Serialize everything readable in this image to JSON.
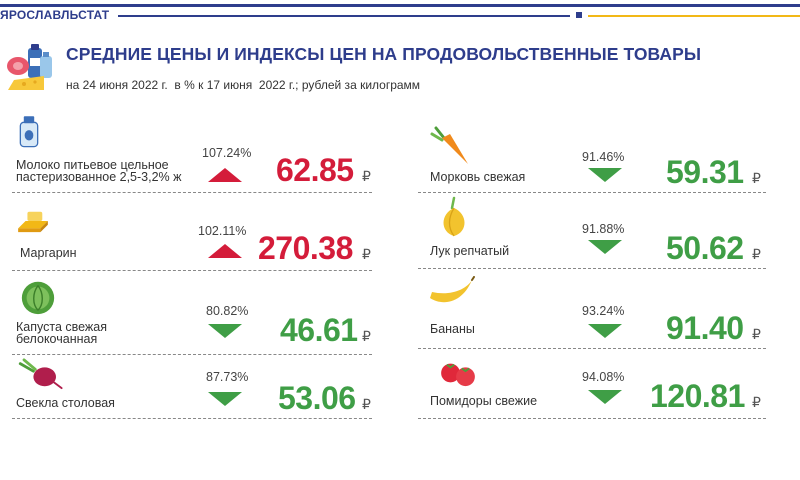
{
  "header": {
    "brand": "ЯРОСЛАВЛЬСТАТ",
    "title": "СРЕДНИЕ ЦЕНЫ И ИНДЕКСЫ ЦЕН НА ПРОДОВОЛЬСТВЕННЫЕ ТОВАРЫ",
    "subtitle": "на 24 июня 2022 г.  в % к 17 июня  2022 г.; рублей за килограмм"
  },
  "currency_symbol": "₽",
  "colors": {
    "up": "#d41c3a",
    "down": "#3f9e46",
    "brand": "#2e3d8c",
    "accent": "#f2b816"
  },
  "items": [
    {
      "name_line1": "Молоко питьевое цельное",
      "name_line2": "пастеризованное 2,5-3,2% ж",
      "index": "107.24%",
      "direction": "up",
      "price": "62.85",
      "icon": "milk-bottle-icon"
    },
    {
      "name_line1": "Маргарин",
      "name_line2": "",
      "index": "102.11%",
      "direction": "up",
      "price": "270.38",
      "icon": "margarine-icon"
    },
    {
      "name_line1": "Капуста свежая",
      "name_line2": "белокочанная",
      "index": "80.82%",
      "direction": "down",
      "price": "46.61",
      "icon": "cabbage-icon"
    },
    {
      "name_line1": "Свекла столовая",
      "name_line2": "",
      "index": "87.73%",
      "direction": "down",
      "price": "53.06",
      "icon": "beet-icon"
    },
    {
      "name_line1": "Морковь свежая",
      "name_line2": "",
      "index": "91.46%",
      "direction": "down",
      "price": "59.31",
      "icon": "carrot-icon"
    },
    {
      "name_line1": "Лук репчатый",
      "name_line2": "",
      "index": "91.88%",
      "direction": "down",
      "price": "50.62",
      "icon": "onion-icon"
    },
    {
      "name_line1": "Бананы",
      "name_line2": "",
      "index": "93.24%",
      "direction": "down",
      "price": "91.40",
      "icon": "banana-icon"
    },
    {
      "name_line1": "Помидоры свежие",
      "name_line2": "",
      "index": "94.08%",
      "direction": "down",
      "price": "120.81",
      "icon": "tomato-icon"
    }
  ]
}
